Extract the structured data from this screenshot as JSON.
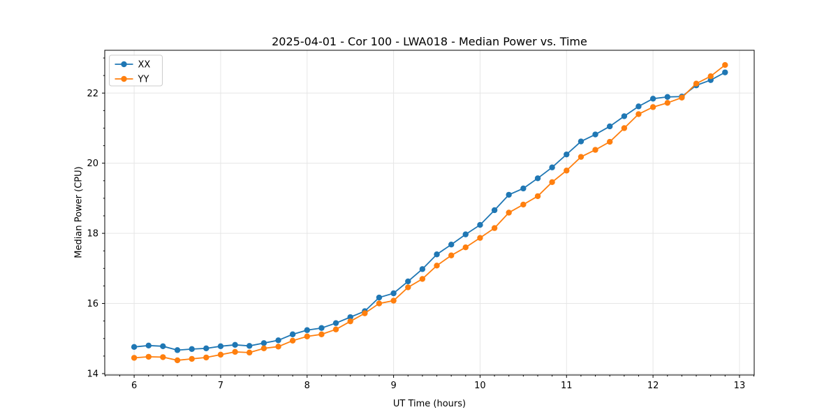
{
  "chart": {
    "title": "2025-04-01 - Cor 100 - LWA018 - Median Power vs. Time",
    "xlabel": "UT Time (hours)",
    "ylabel": "Median Power (CPU)"
  },
  "chart_data": {
    "type": "line",
    "title": "2025-04-01 - Cor 100 - LWA018 - Median Power vs. Time",
    "xlabel": "UT Time (hours)",
    "ylabel": "Median Power (CPU)",
    "xlim": [
      5.66,
      13.17
    ],
    "ylim": [
      13.96,
      23.22
    ],
    "x_ticks": [
      6,
      7,
      8,
      9,
      10,
      11,
      12,
      13
    ],
    "y_ticks": [
      14,
      16,
      18,
      20,
      22
    ],
    "grid": true,
    "legend_position": "upper left",
    "marker": "circle",
    "x": [
      6.0,
      6.167,
      6.333,
      6.5,
      6.667,
      6.833,
      7.0,
      7.167,
      7.333,
      7.5,
      7.667,
      7.833,
      8.0,
      8.167,
      8.333,
      8.5,
      8.667,
      8.833,
      9.0,
      9.167,
      9.333,
      9.5,
      9.667,
      9.833,
      10.0,
      10.167,
      10.333,
      10.5,
      10.667,
      10.833,
      11.0,
      11.167,
      11.333,
      11.5,
      11.667,
      11.833,
      12.0,
      12.167,
      12.333,
      12.5,
      12.667,
      12.833
    ],
    "series": [
      {
        "name": "XX",
        "color": "#1f77b4",
        "values": [
          14.76,
          14.8,
          14.78,
          14.67,
          14.7,
          14.72,
          14.78,
          14.82,
          14.79,
          14.87,
          14.95,
          15.12,
          15.24,
          15.3,
          15.44,
          15.61,
          15.78,
          16.17,
          16.29,
          16.63,
          16.98,
          17.4,
          17.68,
          17.97,
          18.24,
          18.66,
          19.1,
          19.28,
          19.57,
          19.88,
          20.25,
          20.62,
          20.82,
          21.05,
          21.34,
          21.62,
          21.84,
          21.89,
          21.9,
          22.22,
          22.37,
          22.59
        ]
      },
      {
        "name": "YY",
        "color": "#ff7f0e",
        "values": [
          14.45,
          14.48,
          14.47,
          14.38,
          14.42,
          14.46,
          14.54,
          14.62,
          14.6,
          14.72,
          14.77,
          14.94,
          15.06,
          15.12,
          15.26,
          15.49,
          15.72,
          16.0,
          16.08,
          16.46,
          16.7,
          17.08,
          17.37,
          17.6,
          17.87,
          18.15,
          18.59,
          18.82,
          19.06,
          19.46,
          19.79,
          20.18,
          20.38,
          20.61,
          21.0,
          21.4,
          21.6,
          21.72,
          21.87,
          22.27,
          22.48,
          22.8
        ]
      }
    ],
    "colors": {
      "grid": "#e6e6e6",
      "spine": "#000000",
      "text": "#000000",
      "legend_border": "#cccccc"
    }
  }
}
